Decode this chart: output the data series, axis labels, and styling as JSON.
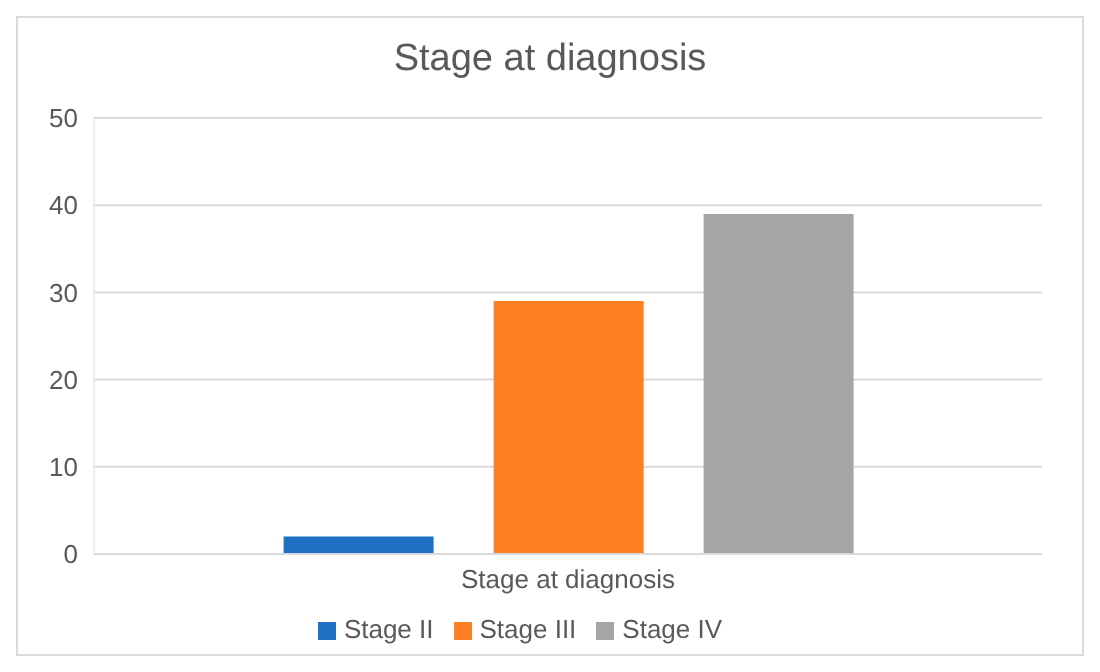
{
  "chart_data": {
    "type": "bar",
    "title": "Stage at diagnosis",
    "categories": [
      "Stage at diagnosis"
    ],
    "series": [
      {
        "name": "Stage II",
        "color": "#1f6fc5",
        "values": [
          2
        ]
      },
      {
        "name": "Stage III",
        "color": "#fd7f23",
        "values": [
          29
        ]
      },
      {
        "name": "Stage IV",
        "color": "#a5a5a5",
        "values": [
          39
        ]
      }
    ],
    "ylim": [
      0,
      50
    ],
    "yticks": [
      0,
      10,
      20,
      30,
      40,
      50
    ],
    "grid": "y",
    "legend": "bottom"
  }
}
